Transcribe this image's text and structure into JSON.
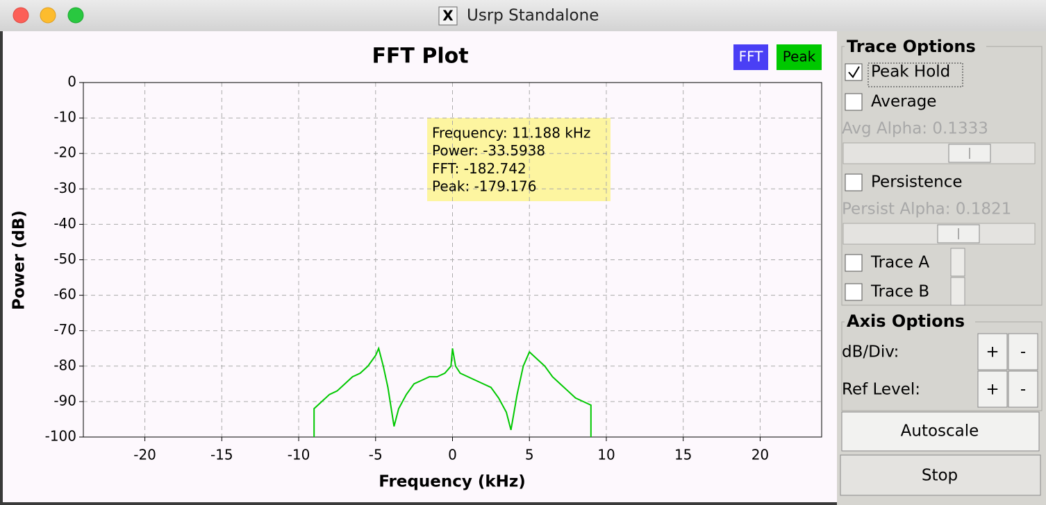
{
  "window": {
    "title": "Usrp Standalone"
  },
  "chart_data": {
    "type": "line",
    "title": "FFT Plot",
    "x_label": "Frequency (kHz)",
    "y_label": "Power (dB)",
    "x": [
      -9,
      -9,
      -8.5,
      -8,
      -7.5,
      -7,
      -6.5,
      -6,
      -5.5,
      -5,
      -4.8,
      -4.5,
      -4.2,
      -3.8,
      -3.5,
      -3,
      -2.5,
      -2,
      -1.5,
      -1,
      -0.5,
      -0.1,
      0,
      0.2,
      0.5,
      1,
      1.5,
      2,
      2.5,
      3,
      3.5,
      3.8,
      4.2,
      4.6,
      5,
      5.5,
      6,
      6.5,
      7,
      7.5,
      8,
      8.5,
      9,
      9
    ],
    "series": [
      {
        "name": "FFT",
        "color": "#4a3ff5",
        "values": [
          null,
          null,
          null,
          null,
          null,
          null,
          null,
          null,
          null,
          null,
          null,
          null,
          null,
          null,
          null,
          null,
          null,
          null,
          null,
          null,
          null,
          null,
          null,
          null,
          null,
          null,
          null,
          null,
          null,
          null,
          null,
          null,
          null,
          null,
          null,
          null,
          null,
          null,
          null,
          null,
          null,
          null,
          null,
          null
        ]
      },
      {
        "name": "Peak",
        "color": "#00c800",
        "values": [
          -100,
          -92,
          -90,
          -88,
          -87,
          -85,
          -83,
          -82,
          -80,
          -77,
          -75,
          -80,
          -86,
          -97,
          -92,
          -88,
          -85,
          -84,
          -83,
          -83,
          -82,
          -80,
          -75,
          -80,
          -82,
          -83,
          -84,
          -85,
          -86,
          -89,
          -93,
          -98,
          -88,
          -80,
          -76,
          -78,
          -80,
          -83,
          -85,
          -87,
          -89,
          -90,
          -91,
          -100
        ]
      }
    ],
    "xlim": [
      -24,
      24
    ],
    "xticks": [
      -20,
      -15,
      -10,
      -5,
      0,
      5,
      10,
      15,
      20
    ],
    "ylim": [
      -100,
      0
    ],
    "yticks": [
      0,
      -10,
      -20,
      -30,
      -40,
      -50,
      -60,
      -70,
      -80,
      -90,
      -100
    ],
    "grid": true
  },
  "tooltip": {
    "lines": [
      "Frequency: 11.188 kHz",
      "Power: -33.5938",
      "FFT: -182.742",
      "Peak: -179.176"
    ]
  },
  "panel": {
    "trace_options": {
      "title": "Trace Options",
      "peak_hold": {
        "label": "Peak Hold",
        "checked": true
      },
      "average": {
        "label": "Average",
        "checked": false
      },
      "avg_alpha": "Avg Alpha: 0.1333",
      "persistence": {
        "label": "Persistence",
        "checked": false
      },
      "persist_alpha": "Persist Alpha: 0.1821",
      "trace_a": {
        "label": "Trace A",
        "checked": false
      },
      "trace_b": {
        "label": "Trace B",
        "checked": false
      }
    },
    "axis_options": {
      "title": "Axis Options",
      "db_div": {
        "label": "dB/Div:",
        "plus": "+",
        "minus": "-"
      },
      "ref_level": {
        "label": "Ref Level:",
        "plus": "+",
        "minus": "-"
      }
    },
    "autoscale": "Autoscale",
    "stop": "Stop"
  }
}
